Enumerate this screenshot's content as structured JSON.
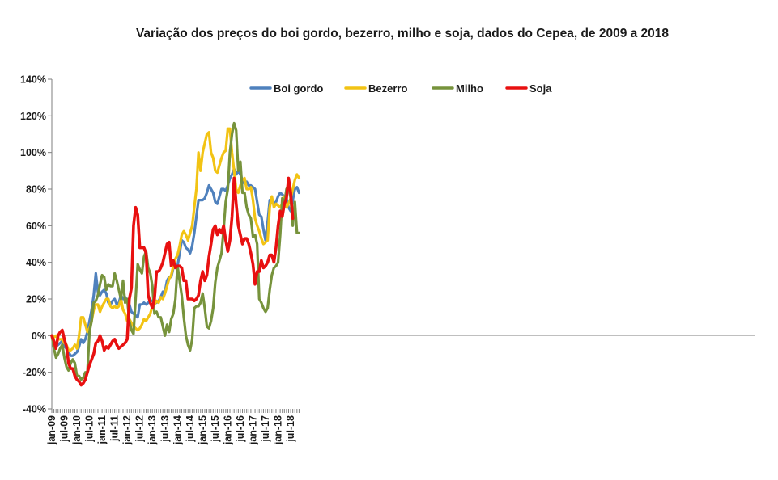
{
  "chart_data": {
    "type": "line",
    "title": "Variação dos preços do boi gordo, bezerro, milho e soja, dados do Cepea, de 2009 a 2018",
    "xlabel": "",
    "ylabel": "",
    "ylim": [
      -40,
      140
    ],
    "yticks": [
      "140%",
      "120%",
      "100%",
      "80%",
      "60%",
      "40%",
      "20%",
      "0%",
      "-20%",
      "-40%"
    ],
    "xticks": [
      "jan-09",
      "jul-09",
      "jan-10",
      "jul-10",
      "jan-11",
      "jul-11",
      "jan-12",
      "jul-12",
      "jan-13",
      "jul-13",
      "jan-14",
      "jul-14",
      "jan-15",
      "jul-15",
      "jan-16",
      "jul-16",
      "jan-17",
      "jul-17",
      "jan-18",
      "jul-18"
    ],
    "x_start": "2009-01",
    "legend": "top-center",
    "grid": false,
    "series": [
      {
        "name": "Boi gordo",
        "color": "#4f81bd",
        "values": [
          0,
          -5,
          -6,
          -5,
          -4,
          -3,
          -6,
          -7,
          -9,
          -11,
          -11,
          -10,
          -9,
          -6,
          -2,
          -4,
          -2,
          2,
          8,
          14,
          22,
          34,
          24,
          22,
          24,
          25,
          23,
          18,
          17,
          19,
          20,
          17,
          18,
          22,
          20,
          21,
          19,
          17,
          13,
          12,
          11,
          10,
          17,
          17,
          18,
          17,
          18,
          19,
          19,
          19,
          18,
          19,
          21,
          24,
          24,
          30,
          32,
          32,
          37,
          38,
          38,
          45,
          52,
          51,
          48,
          47,
          45,
          49,
          56,
          65,
          74,
          74,
          74,
          75,
          78,
          82,
          80,
          78,
          73,
          72,
          76,
          80,
          80,
          79,
          82,
          86,
          88,
          91,
          88,
          90,
          88,
          85,
          83,
          84,
          82,
          82,
          81,
          80,
          73,
          66,
          65,
          58,
          52,
          62,
          74,
          73,
          72,
          73,
          76,
          78,
          77,
          76,
          75,
          70,
          68,
          74,
          80,
          81,
          78
        ]
      },
      {
        "name": "Bezerro",
        "color": "#f2c314",
        "values": [
          0,
          -1,
          0,
          -2,
          -2,
          -2,
          -4,
          -5,
          -8,
          -8,
          -7,
          -5,
          -7,
          0,
          10,
          10,
          6,
          2,
          4,
          8,
          14,
          17,
          17,
          13,
          16,
          18,
          20,
          20,
          16,
          15,
          16,
          15,
          16,
          20,
          14,
          12,
          8,
          9,
          7,
          5,
          4,
          3,
          4,
          6,
          9,
          8,
          10,
          12,
          16,
          17,
          19,
          18,
          21,
          20,
          23,
          27,
          31,
          33,
          38,
          42,
          44,
          49,
          55,
          57,
          55,
          52,
          56,
          60,
          70,
          80,
          100,
          90,
          100,
          105,
          110,
          111,
          100,
          97,
          90,
          89,
          93,
          97,
          100,
          101,
          113,
          113,
          100,
          90,
          80,
          78,
          82,
          85,
          86,
          80,
          80,
          81,
          74,
          64,
          60,
          57,
          53,
          50,
          51,
          52,
          70,
          76,
          70,
          72,
          71,
          70,
          72,
          76,
          70,
          72,
          75,
          80,
          85,
          88,
          86
        ]
      },
      {
        "name": "Milho",
        "color": "#77933c",
        "values": [
          0,
          -7,
          -12,
          -10,
          -7,
          -5,
          -12,
          -17,
          -19,
          -15,
          -13,
          -15,
          -22,
          -22,
          -24,
          -23,
          -20,
          -20,
          2,
          8,
          18,
          19,
          22,
          28,
          33,
          32,
          25,
          28,
          27,
          27,
          34,
          30,
          25,
          20,
          30,
          18,
          20,
          8,
          3,
          1,
          20,
          39,
          36,
          34,
          43,
          46,
          37,
          34,
          27,
          12,
          13,
          10,
          10,
          5,
          0,
          6,
          2,
          9,
          12,
          20,
          38,
          30,
          22,
          10,
          0,
          -5,
          -8,
          -2,
          15,
          16,
          16,
          18,
          23,
          15,
          5,
          4,
          8,
          15,
          29,
          37,
          41,
          45,
          58,
          73,
          80,
          100,
          110,
          116,
          112,
          90,
          95,
          78,
          78,
          70,
          66,
          64,
          54,
          55,
          50,
          20,
          18,
          15,
          13,
          15,
          25,
          33,
          37,
          38,
          40,
          55,
          75,
          72,
          80,
          82,
          75,
          60,
          73,
          56,
          56
        ]
      },
      {
        "name": "Soja",
        "color": "#e81010",
        "values": [
          0,
          -3,
          -7,
          0,
          2,
          3,
          -2,
          -6,
          -15,
          -18,
          -18,
          -22,
          -24,
          -25,
          -27,
          -26,
          -24,
          -20,
          -16,
          -13,
          -10,
          -4,
          -3,
          0,
          -3,
          -8,
          -6,
          -7,
          -5,
          -3,
          -2,
          -5,
          -7,
          -6,
          -5,
          -4,
          -2,
          20,
          26,
          60,
          70,
          66,
          48,
          48,
          48,
          45,
          22,
          18,
          15,
          20,
          35,
          35,
          37,
          40,
          45,
          50,
          51,
          38,
          41,
          37,
          38,
          38,
          37,
          30,
          30,
          20,
          20,
          20,
          19,
          20,
          22,
          30,
          35,
          30,
          33,
          43,
          50,
          58,
          60,
          55,
          58,
          56,
          60,
          52,
          46,
          52,
          65,
          86,
          72,
          60,
          55,
          50,
          53,
          53,
          50,
          45,
          39,
          28,
          35,
          35,
          41,
          37,
          38,
          40,
          44,
          44,
          40,
          48,
          60,
          68,
          65,
          72,
          75,
          86,
          78,
          64
        ]
      }
    ]
  }
}
